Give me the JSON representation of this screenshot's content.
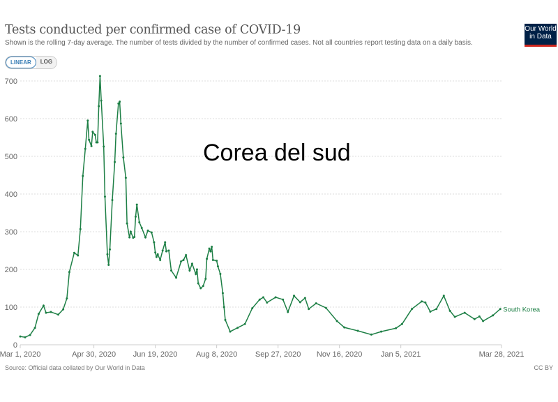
{
  "header": {
    "title": "Tests conducted per confirmed case of COVID-19",
    "subtitle": "Shown is the rolling 7-day average. The number of tests divided by the number of confirmed cases. Not all countries report testing data on a daily basis.",
    "logo_line1": "Our World",
    "logo_line2": "in Data"
  },
  "controls": {
    "linear": "LINEAR",
    "log": "LOG"
  },
  "overlay_text": "Corea del sud",
  "footer": {
    "source": "Source: Official data collated by Our World in Data",
    "license": "CC BY"
  },
  "colors": {
    "series": "#1d7f45",
    "grid": "#ddd"
  },
  "chart_data": {
    "type": "line",
    "title": "Tests conducted per confirmed case of COVID-19",
    "xlabel": "",
    "ylabel": "",
    "x_unit": "days since Mar 1, 2020",
    "xlim": [
      0,
      392
    ],
    "ylim": [
      0,
      700
    ],
    "yticks": [
      0,
      100,
      200,
      300,
      400,
      500,
      600,
      700
    ],
    "xticks": [
      {
        "day": 0,
        "label": "Mar 1, 2020"
      },
      {
        "day": 60,
        "label": "Apr 30, 2020"
      },
      {
        "day": 110,
        "label": "Jun 19, 2020"
      },
      {
        "day": 160,
        "label": "Aug 8, 2020"
      },
      {
        "day": 210,
        "label": "Sep 27, 2020"
      },
      {
        "day": 260,
        "label": "Nov 16, 2020"
      },
      {
        "day": 310,
        "label": "Jan 5, 2021"
      },
      {
        "day": 392,
        "label": "Mar 28, 2021"
      }
    ],
    "grid": true,
    "series": [
      {
        "name": "South Korea",
        "x": [
          0,
          4,
          8,
          12,
          15,
          19,
          21,
          25,
          31,
          35,
          38,
          40,
          44,
          47,
          49,
          51,
          53,
          55,
          56,
          58,
          59,
          61,
          62,
          63,
          64,
          65,
          66,
          68,
          69,
          71,
          72,
          73,
          75,
          77,
          78,
          80,
          81,
          82,
          84,
          86,
          87,
          89,
          90,
          92,
          93,
          94,
          95,
          97,
          99,
          102,
          104,
          107,
          109,
          110,
          111,
          112,
          114,
          116,
          118,
          119,
          121,
          123,
          127,
          131,
          133,
          135,
          138,
          140,
          143,
          144,
          145,
          147,
          149,
          151,
          152,
          154,
          155,
          156,
          157,
          160,
          161,
          163,
          165,
          166,
          167,
          171,
          177,
          183,
          189,
          195,
          198,
          201,
          208,
          214,
          218,
          223,
          228,
          232,
          235,
          241,
          249,
          258,
          264,
          275,
          286,
          294,
          306,
          311,
          319,
          327,
          330,
          334,
          339,
          345,
          350,
          354,
          362,
          370,
          374,
          377,
          385,
          391
        ],
        "values": [
          22,
          20,
          26,
          45,
          82,
          104,
          85,
          87,
          80,
          94,
          123,
          193,
          244,
          237,
          307,
          448,
          520,
          595,
          544,
          527,
          565,
          557,
          537,
          537,
          633,
          713,
          648,
          526,
          393,
          240,
          212,
          253,
          384,
          485,
          560,
          640,
          645,
          587,
          497,
          443,
          322,
          285,
          300,
          284,
          286,
          340,
          372,
          325,
          310,
          285,
          303,
          298,
          272,
          245,
          233,
          240,
          225,
          250,
          272,
          248,
          250,
          197,
          178,
          221,
          225,
          238,
          197,
          215,
          188,
          200,
          163,
          150,
          156,
          175,
          228,
          255,
          248,
          260,
          225,
          223,
          208,
          188,
          137,
          100,
          66,
          35,
          45,
          55,
          97,
          120,
          126,
          112,
          126,
          120,
          87,
          130,
          113,
          124,
          95,
          110,
          98,
          63,
          46,
          37,
          27,
          35,
          44,
          55,
          95,
          115,
          112,
          88,
          95,
          130,
          90,
          74,
          85,
          68,
          75,
          63,
          78,
          95
        ]
      }
    ]
  }
}
